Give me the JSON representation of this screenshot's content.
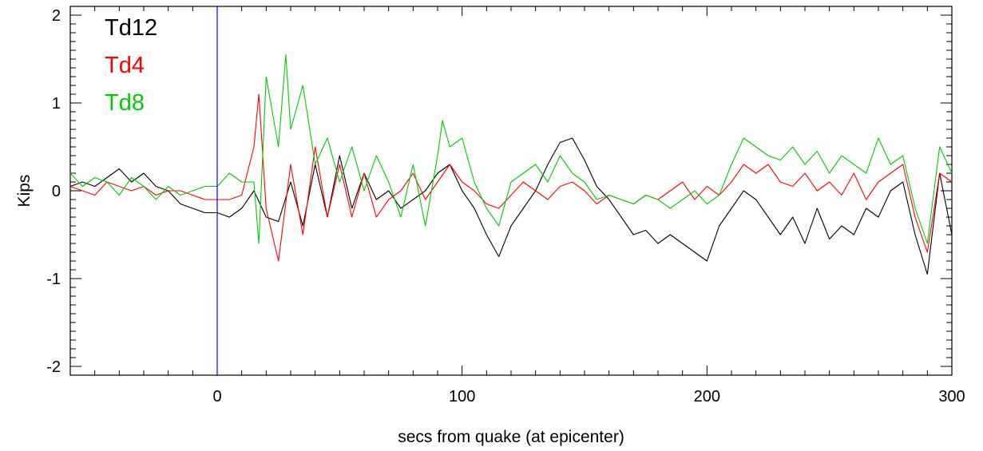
{
  "chart_data": {
    "type": "line",
    "title": "",
    "xlabel": "secs from quake (at epicenter)",
    "ylabel": "Kips",
    "xlim": [
      -60,
      300
    ],
    "ylim": [
      -2.1,
      2.1
    ],
    "x_ticks": [
      0,
      100,
      200,
      300
    ],
    "y_ticks": [
      -2,
      -1,
      0,
      1,
      2
    ],
    "x_tick_labels": [
      "0",
      "100",
      "200",
      "300"
    ],
    "y_tick_labels": [
      "-2",
      "-1",
      "0",
      "1",
      "2"
    ],
    "legend_position": "top-left",
    "grid": false,
    "annotations": [
      {
        "type": "vertical-line",
        "x": 0,
        "color": "#0000ff"
      }
    ],
    "series": [
      {
        "name": "Td12",
        "color": "#000000",
        "points": [
          [
            -60,
            0.05
          ],
          [
            -55,
            0.1
          ],
          [
            -50,
            0.05
          ],
          [
            -45,
            0.15
          ],
          [
            -40,
            0.25
          ],
          [
            -35,
            0.1
          ],
          [
            -30,
            0.2
          ],
          [
            -25,
            0.05
          ],
          [
            -20,
            0.0
          ],
          [
            -15,
            -0.15
          ],
          [
            -10,
            -0.2
          ],
          [
            -5,
            -0.25
          ],
          [
            0,
            -0.25
          ],
          [
            5,
            -0.3
          ],
          [
            10,
            -0.2
          ],
          [
            15,
            0.0
          ],
          [
            20,
            -0.3
          ],
          [
            25,
            -0.35
          ],
          [
            30,
            0.1
          ],
          [
            35,
            -0.4
          ],
          [
            40,
            0.3
          ],
          [
            45,
            -0.3
          ],
          [
            50,
            0.4
          ],
          [
            55,
            -0.2
          ],
          [
            60,
            0.2
          ],
          [
            65,
            -0.1
          ],
          [
            70,
            0.0
          ],
          [
            75,
            -0.2
          ],
          [
            80,
            -0.1
          ],
          [
            85,
            0.0
          ],
          [
            90,
            0.2
          ],
          [
            95,
            0.3
          ],
          [
            100,
            0.0
          ],
          [
            105,
            -0.2
          ],
          [
            110,
            -0.5
          ],
          [
            115,
            -0.75
          ],
          [
            120,
            -0.4
          ],
          [
            125,
            -0.2
          ],
          [
            130,
            0.0
          ],
          [
            135,
            0.3
          ],
          [
            140,
            0.55
          ],
          [
            145,
            0.6
          ],
          [
            150,
            0.35
          ],
          [
            155,
            0.05
          ],
          [
            160,
            -0.1
          ],
          [
            165,
            -0.3
          ],
          [
            170,
            -0.5
          ],
          [
            175,
            -0.45
          ],
          [
            180,
            -0.6
          ],
          [
            185,
            -0.5
          ],
          [
            190,
            -0.6
          ],
          [
            195,
            -0.7
          ],
          [
            200,
            -0.8
          ],
          [
            205,
            -0.4
          ],
          [
            210,
            -0.2
          ],
          [
            215,
            0.0
          ],
          [
            220,
            -0.1
          ],
          [
            225,
            -0.3
          ],
          [
            230,
            -0.5
          ],
          [
            235,
            -0.3
          ],
          [
            240,
            -0.6
          ],
          [
            245,
            -0.2
          ],
          [
            250,
            -0.55
          ],
          [
            255,
            -0.4
          ],
          [
            260,
            -0.5
          ],
          [
            265,
            -0.2
          ],
          [
            270,
            -0.3
          ],
          [
            275,
            0.0
          ],
          [
            280,
            0.1
          ],
          [
            285,
            -0.5
          ],
          [
            290,
            -0.95
          ],
          [
            295,
            0.2
          ],
          [
            300,
            -0.5
          ]
        ]
      },
      {
        "name": "Td4",
        "color": "#ff0000",
        "points": [
          [
            -60,
            0.05
          ],
          [
            -55,
            0.0
          ],
          [
            -50,
            -0.05
          ],
          [
            -45,
            0.1
          ],
          [
            -40,
            0.05
          ],
          [
            -35,
            0.0
          ],
          [
            -30,
            0.05
          ],
          [
            -25,
            -0.05
          ],
          [
            -20,
            0.0
          ],
          [
            -15,
            0.0
          ],
          [
            -10,
            -0.05
          ],
          [
            -5,
            -0.1
          ],
          [
            0,
            -0.1
          ],
          [
            5,
            -0.1
          ],
          [
            10,
            -0.05
          ],
          [
            15,
            0.5
          ],
          [
            17,
            1.1
          ],
          [
            20,
            -0.2
          ],
          [
            25,
            -0.8
          ],
          [
            30,
            0.3
          ],
          [
            35,
            -0.5
          ],
          [
            40,
            0.5
          ],
          [
            45,
            -0.3
          ],
          [
            50,
            0.3
          ],
          [
            55,
            -0.3
          ],
          [
            60,
            0.2
          ],
          [
            65,
            -0.3
          ],
          [
            70,
            -0.1
          ],
          [
            75,
            0.0
          ],
          [
            80,
            0.2
          ],
          [
            85,
            -0.1
          ],
          [
            90,
            0.1
          ],
          [
            95,
            0.3
          ],
          [
            100,
            0.1
          ],
          [
            105,
            0.0
          ],
          [
            110,
            -0.15
          ],
          [
            115,
            -0.2
          ],
          [
            120,
            -0.05
          ],
          [
            125,
            0.1
          ],
          [
            130,
            0.0
          ],
          [
            135,
            -0.1
          ],
          [
            140,
            0.05
          ],
          [
            145,
            0.1
          ],
          [
            150,
            0.0
          ],
          [
            155,
            -0.15
          ],
          [
            160,
            -0.05
          ],
          [
            165,
            -0.1
          ],
          [
            170,
            -0.15
          ],
          [
            175,
            -0.05
          ],
          [
            180,
            -0.1
          ],
          [
            185,
            0.0
          ],
          [
            190,
            0.1
          ],
          [
            195,
            -0.1
          ],
          [
            200,
            0.05
          ],
          [
            205,
            -0.05
          ],
          [
            210,
            0.1
          ],
          [
            215,
            0.3
          ],
          [
            220,
            0.2
          ],
          [
            225,
            0.3
          ],
          [
            230,
            0.1
          ],
          [
            235,
            0.05
          ],
          [
            240,
            0.2
          ],
          [
            245,
            0.0
          ],
          [
            250,
            0.1
          ],
          [
            255,
            -0.05
          ],
          [
            260,
            0.2
          ],
          [
            265,
            -0.1
          ],
          [
            270,
            0.1
          ],
          [
            275,
            0.2
          ],
          [
            280,
            0.3
          ],
          [
            285,
            -0.3
          ],
          [
            290,
            -0.7
          ],
          [
            295,
            0.2
          ],
          [
            300,
            0.1
          ]
        ]
      },
      {
        "name": "Td8",
        "color": "#00cc00",
        "points": [
          [
            -60,
            0.2
          ],
          [
            -55,
            0.05
          ],
          [
            -50,
            0.15
          ],
          [
            -45,
            0.1
          ],
          [
            -40,
            -0.05
          ],
          [
            -35,
            0.15
          ],
          [
            -30,
            0.05
          ],
          [
            -25,
            -0.1
          ],
          [
            -20,
            0.05
          ],
          [
            -15,
            -0.05
          ],
          [
            -10,
            0.0
          ],
          [
            -5,
            0.05
          ],
          [
            0,
            0.05
          ],
          [
            5,
            0.2
          ],
          [
            10,
            0.1
          ],
          [
            15,
            0.1
          ],
          [
            17,
            -0.6
          ],
          [
            20,
            1.3
          ],
          [
            25,
            0.5
          ],
          [
            28,
            1.55
          ],
          [
            30,
            0.7
          ],
          [
            35,
            1.2
          ],
          [
            40,
            0.3
          ],
          [
            45,
            0.6
          ],
          [
            50,
            0.1
          ],
          [
            55,
            0.5
          ],
          [
            60,
            0.0
          ],
          [
            65,
            0.4
          ],
          [
            70,
            0.1
          ],
          [
            75,
            -0.3
          ],
          [
            80,
            0.3
          ],
          [
            85,
            -0.4
          ],
          [
            90,
            0.4
          ],
          [
            92,
            0.8
          ],
          [
            95,
            0.5
          ],
          [
            100,
            0.6
          ],
          [
            105,
            0.1
          ],
          [
            110,
            -0.2
          ],
          [
            115,
            -0.4
          ],
          [
            120,
            0.1
          ],
          [
            125,
            0.2
          ],
          [
            130,
            0.3
          ],
          [
            135,
            0.1
          ],
          [
            140,
            0.4
          ],
          [
            145,
            0.2
          ],
          [
            150,
            0.1
          ],
          [
            155,
            -0.1
          ],
          [
            160,
            -0.05
          ],
          [
            165,
            -0.1
          ],
          [
            170,
            -0.15
          ],
          [
            175,
            -0.05
          ],
          [
            180,
            -0.1
          ],
          [
            185,
            -0.2
          ],
          [
            190,
            -0.1
          ],
          [
            195,
            0.0
          ],
          [
            200,
            -0.15
          ],
          [
            205,
            -0.05
          ],
          [
            210,
            0.3
          ],
          [
            215,
            0.6
          ],
          [
            220,
            0.5
          ],
          [
            225,
            0.4
          ],
          [
            230,
            0.35
          ],
          [
            235,
            0.5
          ],
          [
            240,
            0.3
          ],
          [
            245,
            0.45
          ],
          [
            250,
            0.2
          ],
          [
            255,
            0.4
          ],
          [
            260,
            0.3
          ],
          [
            265,
            0.2
          ],
          [
            270,
            0.6
          ],
          [
            275,
            0.3
          ],
          [
            280,
            0.4
          ],
          [
            285,
            -0.2
          ],
          [
            290,
            -0.6
          ],
          [
            295,
            0.5
          ],
          [
            300,
            0.2
          ]
        ]
      }
    ]
  }
}
